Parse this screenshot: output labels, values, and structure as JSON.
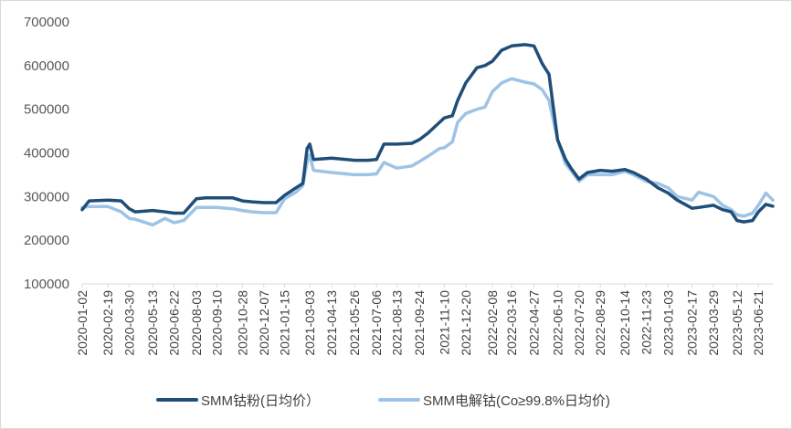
{
  "chart_data": {
    "type": "line",
    "title": "",
    "xlabel": "",
    "ylabel": "",
    "ylim": [
      100000,
      700000
    ],
    "yticks": [
      100000,
      200000,
      300000,
      400000,
      500000,
      600000,
      700000
    ],
    "ytick_labels": [
      "100000",
      "200000",
      "300000",
      "400000",
      "500000",
      "600000",
      "700000"
    ],
    "gridlines": false,
    "legend_position": "bottom",
    "xtick_labels": [
      "2020-01-02",
      "2020-02-19",
      "2020-03-30",
      "2020-05-13",
      "2020-06-22",
      "2020-08-03",
      "2020-09-10",
      "2020-10-28",
      "2020-12-07",
      "2021-01-15",
      "2021-03-03",
      "2021-04-13",
      "2021-05-26",
      "2021-07-06",
      "2021-08-13",
      "2021-09-24",
      "2021-11-10",
      "2021-12-20",
      "2022-02-08",
      "2022-03-16",
      "2022-04-27",
      "2022-06-10",
      "2022-07-20",
      "2022-08-29",
      "2022-10-14",
      "2022-11-23",
      "2023-01-03",
      "2023-02-17",
      "2023-03-29",
      "2023-05-12",
      "2023-06-21"
    ],
    "series": [
      {
        "name": "SMM钴粉(日均价)",
        "legend_label": "SMM钴粉(日均价）",
        "color": "#1f4e79",
        "x": [
          "2020-01-02",
          "2020-01-15",
          "2020-02-19",
          "2020-03-15",
          "2020-03-30",
          "2020-04-10",
          "2020-05-13",
          "2020-06-05",
          "2020-06-22",
          "2020-07-10",
          "2020-08-03",
          "2020-08-20",
          "2020-09-10",
          "2020-10-10",
          "2020-10-28",
          "2020-11-15",
          "2020-12-07",
          "2020-12-30",
          "2021-01-15",
          "2021-02-05",
          "2021-02-18",
          "2021-02-26",
          "2021-03-03",
          "2021-03-10",
          "2021-04-13",
          "2021-05-26",
          "2021-06-20",
          "2021-07-06",
          "2021-07-20",
          "2021-08-13",
          "2021-09-10",
          "2021-09-24",
          "2021-10-10",
          "2021-11-01",
          "2021-11-10",
          "2021-11-25",
          "2021-12-05",
          "2021-12-20",
          "2022-01-10",
          "2022-01-25",
          "2022-02-08",
          "2022-02-25",
          "2022-03-16",
          "2022-04-10",
          "2022-04-27",
          "2022-05-12",
          "2022-05-25",
          "2022-06-10",
          "2022-06-25",
          "2022-07-05",
          "2022-07-20",
          "2022-08-05",
          "2022-08-29",
          "2022-09-20",
          "2022-10-14",
          "2022-10-30",
          "2022-11-23",
          "2022-12-15",
          "2023-01-03",
          "2023-01-20",
          "2023-02-17",
          "2023-03-01",
          "2023-03-29",
          "2023-04-15",
          "2023-05-01",
          "2023-05-12",
          "2023-05-25",
          "2023-06-10",
          "2023-06-21",
          "2023-07-05",
          "2023-07-18"
        ],
        "y": [
          270000,
          290000,
          292000,
          290000,
          272000,
          265000,
          268000,
          265000,
          262000,
          262000,
          295000,
          297000,
          297000,
          297000,
          290000,
          288000,
          286000,
          286000,
          303000,
          320000,
          330000,
          410000,
          420000,
          385000,
          388000,
          383000,
          383000,
          385000,
          420000,
          420000,
          422000,
          430000,
          445000,
          470000,
          480000,
          485000,
          520000,
          560000,
          595000,
          600000,
          610000,
          635000,
          645000,
          648000,
          645000,
          605000,
          580000,
          430000,
          385000,
          365000,
          340000,
          355000,
          360000,
          358000,
          362000,
          355000,
          340000,
          320000,
          308000,
          292000,
          273000,
          275000,
          280000,
          270000,
          265000,
          245000,
          242000,
          245000,
          265000,
          282000,
          278000
        ]
      },
      {
        "name": "SMM电解钴(Co≥99.8%日均价)",
        "legend_label": "SMM电解钴(Co≥99.8%日均价)",
        "color": "#9dc3e6",
        "x": [
          "2020-01-02",
          "2020-01-15",
          "2020-02-19",
          "2020-03-15",
          "2020-03-30",
          "2020-04-10",
          "2020-05-13",
          "2020-06-05",
          "2020-06-22",
          "2020-07-10",
          "2020-08-03",
          "2020-08-20",
          "2020-09-10",
          "2020-10-10",
          "2020-10-28",
          "2020-11-15",
          "2020-12-07",
          "2020-12-30",
          "2021-01-15",
          "2021-02-05",
          "2021-02-18",
          "2021-02-26",
          "2021-03-03",
          "2021-03-10",
          "2021-04-13",
          "2021-05-26",
          "2021-06-20",
          "2021-07-06",
          "2021-07-20",
          "2021-08-13",
          "2021-09-10",
          "2021-09-24",
          "2021-10-10",
          "2021-11-01",
          "2021-11-10",
          "2021-11-25",
          "2021-12-05",
          "2021-12-20",
          "2022-01-10",
          "2022-01-25",
          "2022-02-08",
          "2022-02-25",
          "2022-03-16",
          "2022-04-10",
          "2022-04-27",
          "2022-05-12",
          "2022-05-25",
          "2022-06-10",
          "2022-06-25",
          "2022-07-05",
          "2022-07-20",
          "2022-08-05",
          "2022-08-29",
          "2022-09-20",
          "2022-10-14",
          "2022-10-30",
          "2022-11-23",
          "2022-12-15",
          "2023-01-03",
          "2023-01-20",
          "2023-02-17",
          "2023-03-01",
          "2023-03-29",
          "2023-04-15",
          "2023-05-01",
          "2023-05-12",
          "2023-05-25",
          "2023-06-10",
          "2023-06-21",
          "2023-07-05",
          "2023-07-18"
        ],
        "y": [
          275000,
          277000,
          277000,
          265000,
          250000,
          248000,
          235000,
          250000,
          240000,
          245000,
          275000,
          275000,
          275000,
          272000,
          268000,
          265000,
          263000,
          263000,
          295000,
          310000,
          325000,
          380000,
          395000,
          360000,
          355000,
          350000,
          350000,
          352000,
          378000,
          365000,
          370000,
          380000,
          392000,
          410000,
          412000,
          425000,
          470000,
          490000,
          500000,
          505000,
          540000,
          560000,
          570000,
          562000,
          558000,
          545000,
          520000,
          430000,
          375000,
          360000,
          335000,
          350000,
          350000,
          350000,
          358000,
          350000,
          335000,
          330000,
          320000,
          300000,
          292000,
          310000,
          300000,
          280000,
          270000,
          258000,
          255000,
          262000,
          280000,
          308000,
          292000
        ]
      }
    ]
  }
}
